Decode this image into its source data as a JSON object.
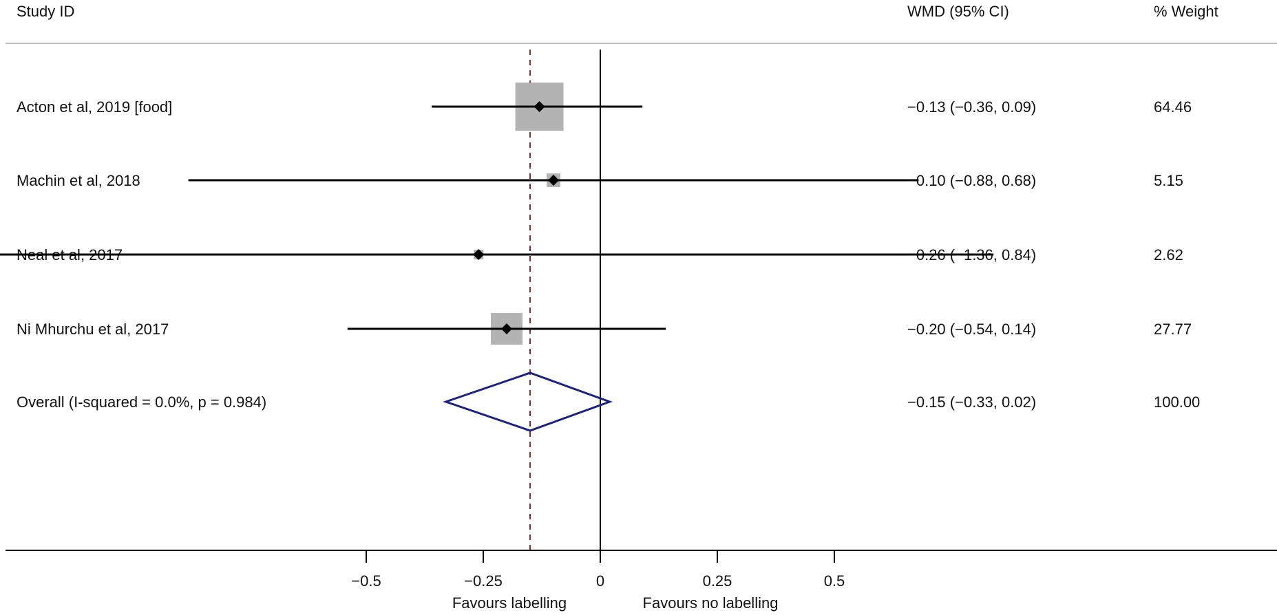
{
  "chart_data": {
    "type": "forest",
    "headers": {
      "study": "Study ID",
      "estimate": "WMD (95% CI)",
      "weight": "% Weight"
    },
    "studies": [
      {
        "label": "Acton et al, 2019 [food]",
        "estimate": -0.13,
        "lower": -0.36,
        "upper": 0.09,
        "weight": 64.46,
        "estimate_text": "−0.13 (−0.36, 0.09)",
        "weight_text": "64.46"
      },
      {
        "label": "Machin et al, 2018",
        "estimate": -0.1,
        "lower": -0.88,
        "upper": 0.68,
        "weight": 5.15,
        "estimate_text": "−0.10 (−0.88, 0.68)",
        "weight_text": "5.15"
      },
      {
        "label": "Neal et al, 2017",
        "estimate": -0.26,
        "lower": -1.36,
        "upper": 0.84,
        "weight": 2.62,
        "estimate_text": "−0.26 (−1.36, 0.84)",
        "weight_text": "2.62"
      },
      {
        "label": "Ni Mhurchu et al, 2017",
        "estimate": -0.2,
        "lower": -0.54,
        "upper": 0.14,
        "weight": 27.77,
        "estimate_text": "−0.20 (−0.54, 0.14)",
        "weight_text": "27.77"
      }
    ],
    "overall": {
      "label": "Overall  (I-squared = 0.0%, p = 0.984)",
      "estimate": -0.15,
      "lower": -0.33,
      "upper": 0.02,
      "weight": 100.0,
      "estimate_text": "−0.15 (−0.33, 0.02)",
      "weight_text": "100.00"
    },
    "x_ticks": [
      {
        "value": -0.5,
        "label": "−0.5"
      },
      {
        "value": -0.25,
        "label": "−0.25"
      },
      {
        "value": 0,
        "label": "0"
      },
      {
        "value": 0.25,
        "label": "0.25"
      },
      {
        "value": 0.5,
        "label": "0.5"
      }
    ],
    "x_visible_range": [
      -1.36,
      0.84
    ],
    "x_clip_min": -1.36,
    "null_line": 0,
    "favours_left": "Favours labelling",
    "favours_right": "Favours no labelling",
    "colors": {
      "ci_line": "#000000",
      "weight_box": "#b3b3b3",
      "point": "#000000",
      "overall_diamond": "#1a237e",
      "overall_line": "#8b2c2c",
      "axis": "#000000",
      "header_rule": "#bdbdbd"
    }
  }
}
